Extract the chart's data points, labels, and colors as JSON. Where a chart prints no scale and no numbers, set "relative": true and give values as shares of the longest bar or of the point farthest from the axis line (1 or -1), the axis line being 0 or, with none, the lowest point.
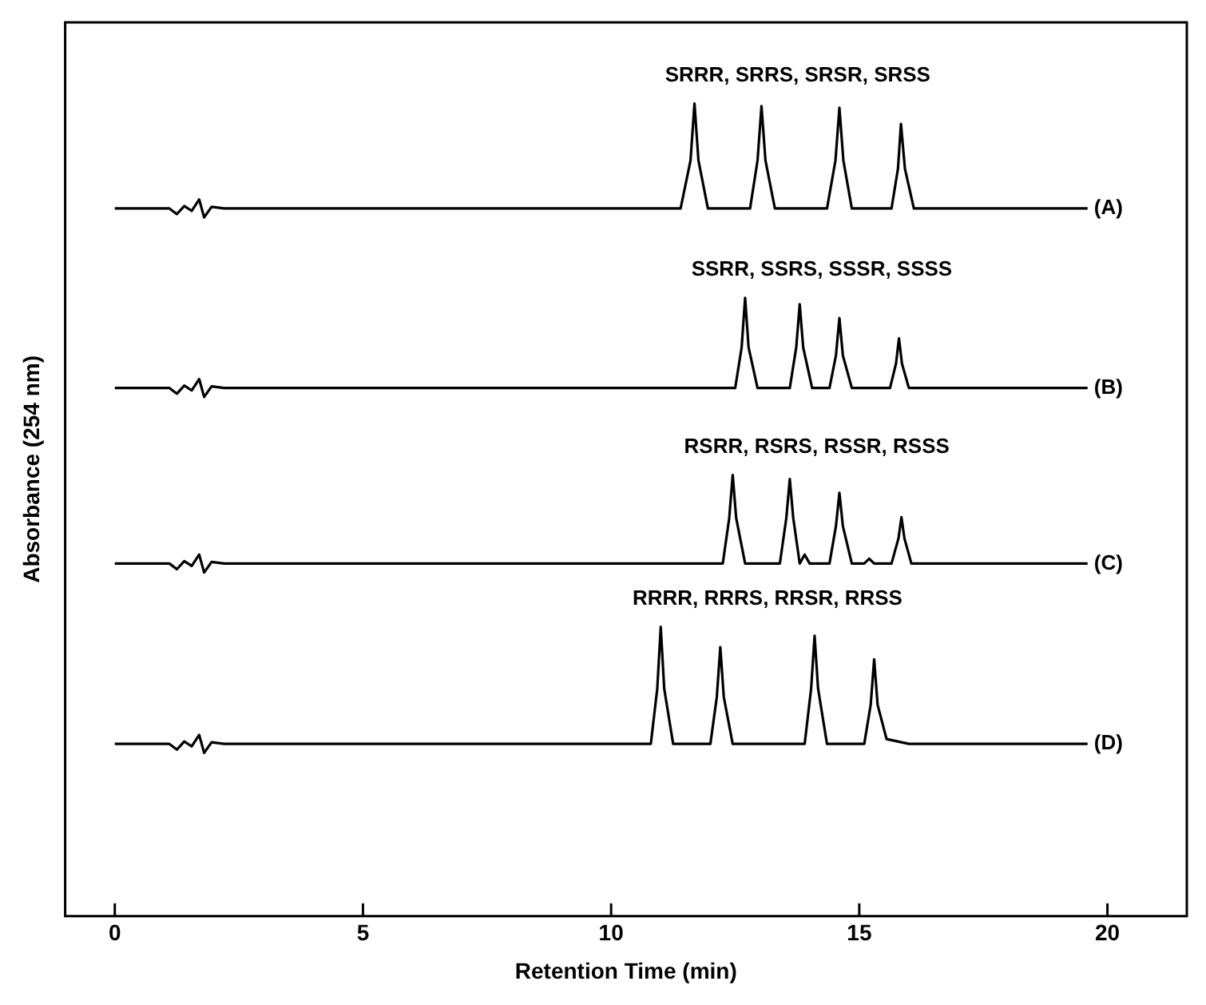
{
  "chart_data": {
    "type": "line",
    "relative": true,
    "xlabel": "Retention Time (min)",
    "ylabel": "Absorbance (254 nm)",
    "xlim": [
      -1,
      21.6
    ],
    "xticks": [
      0,
      5,
      10,
      15,
      20
    ],
    "grid": false,
    "legend": false,
    "marker": "none",
    "line_style": "solid",
    "annotations": [
      "SRRR, SRRS, SRSR, SRSS",
      "SSRR, SSRS, SSSR, SSSS",
      "RSRR, RSRS, RSSR, RSSS",
      "RRRR, RRRS, RRSR, RRSS"
    ],
    "series": [
      {
        "name": "(A)",
        "color": "#000000",
        "x": [
          0,
          1.1,
          1.25,
          1.4,
          1.55,
          1.7,
          1.8,
          1.95,
          2.2,
          5,
          11.4,
          11.6,
          11.68,
          11.76,
          11.95,
          12.8,
          12.95,
          13.03,
          13.11,
          13.3,
          14.35,
          14.52,
          14.6,
          14.68,
          14.85,
          15.65,
          15.78,
          15.84,
          15.92,
          16.1,
          19.6
        ],
        "values": [
          0.871,
          0.871,
          0.864,
          0.874,
          0.868,
          0.882,
          0.86,
          0.873,
          0.871,
          0.871,
          0.871,
          0.93,
          1.0,
          0.93,
          0.871,
          0.871,
          0.93,
          0.997,
          0.93,
          0.871,
          0.871,
          0.93,
          0.995,
          0.93,
          0.871,
          0.871,
          0.92,
          0.975,
          0.92,
          0.871,
          0.871
        ]
      },
      {
        "name": "(B)",
        "color": "#000000",
        "x": [
          0,
          1.1,
          1.25,
          1.4,
          1.55,
          1.7,
          1.8,
          1.95,
          2.2,
          5,
          12.5,
          12.63,
          12.7,
          12.77,
          12.95,
          13.6,
          13.73,
          13.8,
          13.87,
          14.05,
          14.4,
          14.53,
          14.6,
          14.67,
          14.85,
          15.62,
          15.74,
          15.8,
          15.86,
          16.0,
          19.6
        ],
        "values": [
          0.65,
          0.65,
          0.643,
          0.653,
          0.647,
          0.661,
          0.639,
          0.652,
          0.65,
          0.65,
          0.65,
          0.7,
          0.761,
          0.7,
          0.65,
          0.65,
          0.7,
          0.753,
          0.7,
          0.65,
          0.65,
          0.69,
          0.736,
          0.69,
          0.65,
          0.65,
          0.68,
          0.711,
          0.68,
          0.65,
          0.65
        ]
      },
      {
        "name": "(C)",
        "color": "#000000",
        "x": [
          0,
          1.1,
          1.25,
          1.4,
          1.55,
          1.7,
          1.8,
          1.95,
          2.2,
          5,
          12.25,
          12.38,
          12.45,
          12.52,
          12.7,
          13.4,
          13.53,
          13.6,
          13.67,
          13.8,
          13.9,
          14.0,
          14.4,
          14.53,
          14.6,
          14.67,
          14.85,
          15.1,
          15.2,
          15.3,
          15.65,
          15.79,
          15.85,
          15.91,
          16.05,
          19.6
        ],
        "values": [
          0.434,
          0.434,
          0.427,
          0.437,
          0.431,
          0.445,
          0.423,
          0.436,
          0.434,
          0.434,
          0.434,
          0.49,
          0.543,
          0.49,
          0.434,
          0.434,
          0.49,
          0.538,
          0.49,
          0.434,
          0.445,
          0.434,
          0.434,
          0.48,
          0.521,
          0.48,
          0.434,
          0.434,
          0.44,
          0.434,
          0.434,
          0.465,
          0.491,
          0.465,
          0.434,
          0.434
        ]
      },
      {
        "name": "(D)",
        "color": "#000000",
        "x": [
          0,
          1.1,
          1.25,
          1.4,
          1.55,
          1.7,
          1.8,
          1.95,
          2.2,
          5,
          10.8,
          10.93,
          11.0,
          11.07,
          11.25,
          12.0,
          12.13,
          12.2,
          12.27,
          12.45,
          13.9,
          14.03,
          14.1,
          14.17,
          14.35,
          15.1,
          15.23,
          15.3,
          15.37,
          15.55,
          16.0,
          19.6
        ],
        "values": [
          0.212,
          0.212,
          0.205,
          0.215,
          0.209,
          0.223,
          0.201,
          0.214,
          0.212,
          0.212,
          0.212,
          0.28,
          0.356,
          0.28,
          0.212,
          0.212,
          0.27,
          0.331,
          0.27,
          0.212,
          0.212,
          0.28,
          0.345,
          0.28,
          0.212,
          0.212,
          0.26,
          0.316,
          0.26,
          0.218,
          0.212,
          0.212
        ]
      }
    ]
  }
}
